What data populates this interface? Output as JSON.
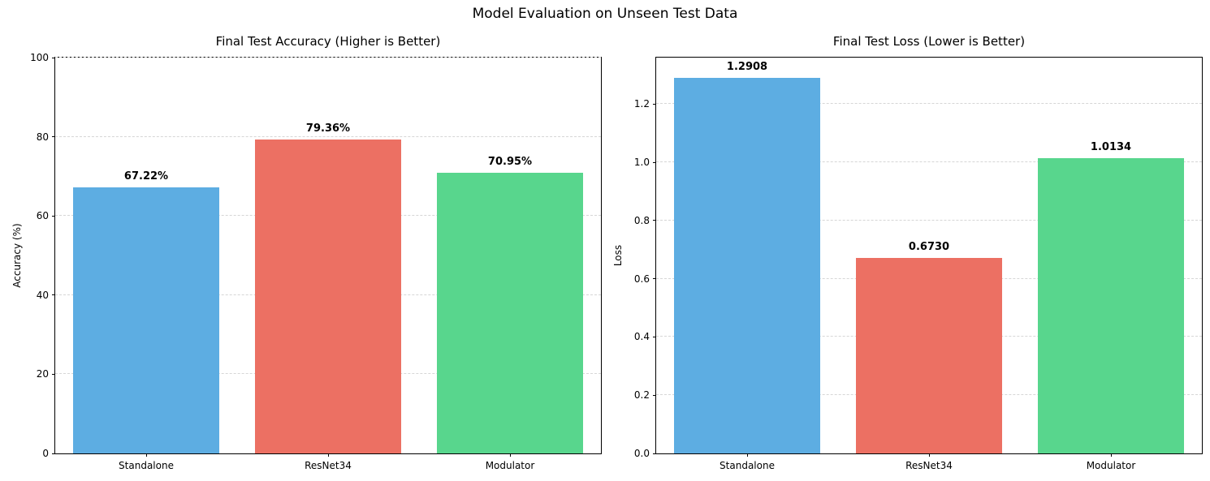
{
  "figure": {
    "title": "Model Evaluation on Unseen Test Data"
  },
  "chart_data": [
    {
      "type": "bar",
      "title": "Final Test Accuracy (Higher is Better)",
      "xlabel": "",
      "ylabel": "Accuracy (%)",
      "categories": [
        "Standalone",
        "ResNet34",
        "Modulator"
      ],
      "values": [
        67.22,
        79.36,
        70.95
      ],
      "bar_labels": [
        "67.22%",
        "79.36%",
        "70.95%"
      ],
      "bar_colors": [
        "#5dade2",
        "#ec7063",
        "#58d68d"
      ],
      "ylim": [
        0,
        100
      ],
      "ytick_values": [
        0,
        20,
        40,
        60,
        80,
        100
      ],
      "ytick_labels": [
        "0",
        "20",
        "40",
        "60",
        "80",
        "100"
      ],
      "grid": "y-dashed",
      "legend": "none"
    },
    {
      "type": "bar",
      "title": "Final Test Loss (Lower is Better)",
      "xlabel": "",
      "ylabel": "Loss",
      "categories": [
        "Standalone",
        "ResNet34",
        "Modulator"
      ],
      "values": [
        1.2908,
        0.673,
        1.0134
      ],
      "bar_labels": [
        "1.2908",
        "0.6730",
        "1.0134"
      ],
      "bar_colors": [
        "#5dade2",
        "#ec7063",
        "#58d68d"
      ],
      "ylim": [
        0,
        1.36
      ],
      "ytick_values": [
        0,
        0.2,
        0.4,
        0.6,
        0.8,
        1.0,
        1.2
      ],
      "ytick_labels": [
        "0.0",
        "0.2",
        "0.4",
        "0.6",
        "0.8",
        "1.0",
        "1.2"
      ],
      "grid": "y-dashed",
      "legend": "none"
    }
  ]
}
